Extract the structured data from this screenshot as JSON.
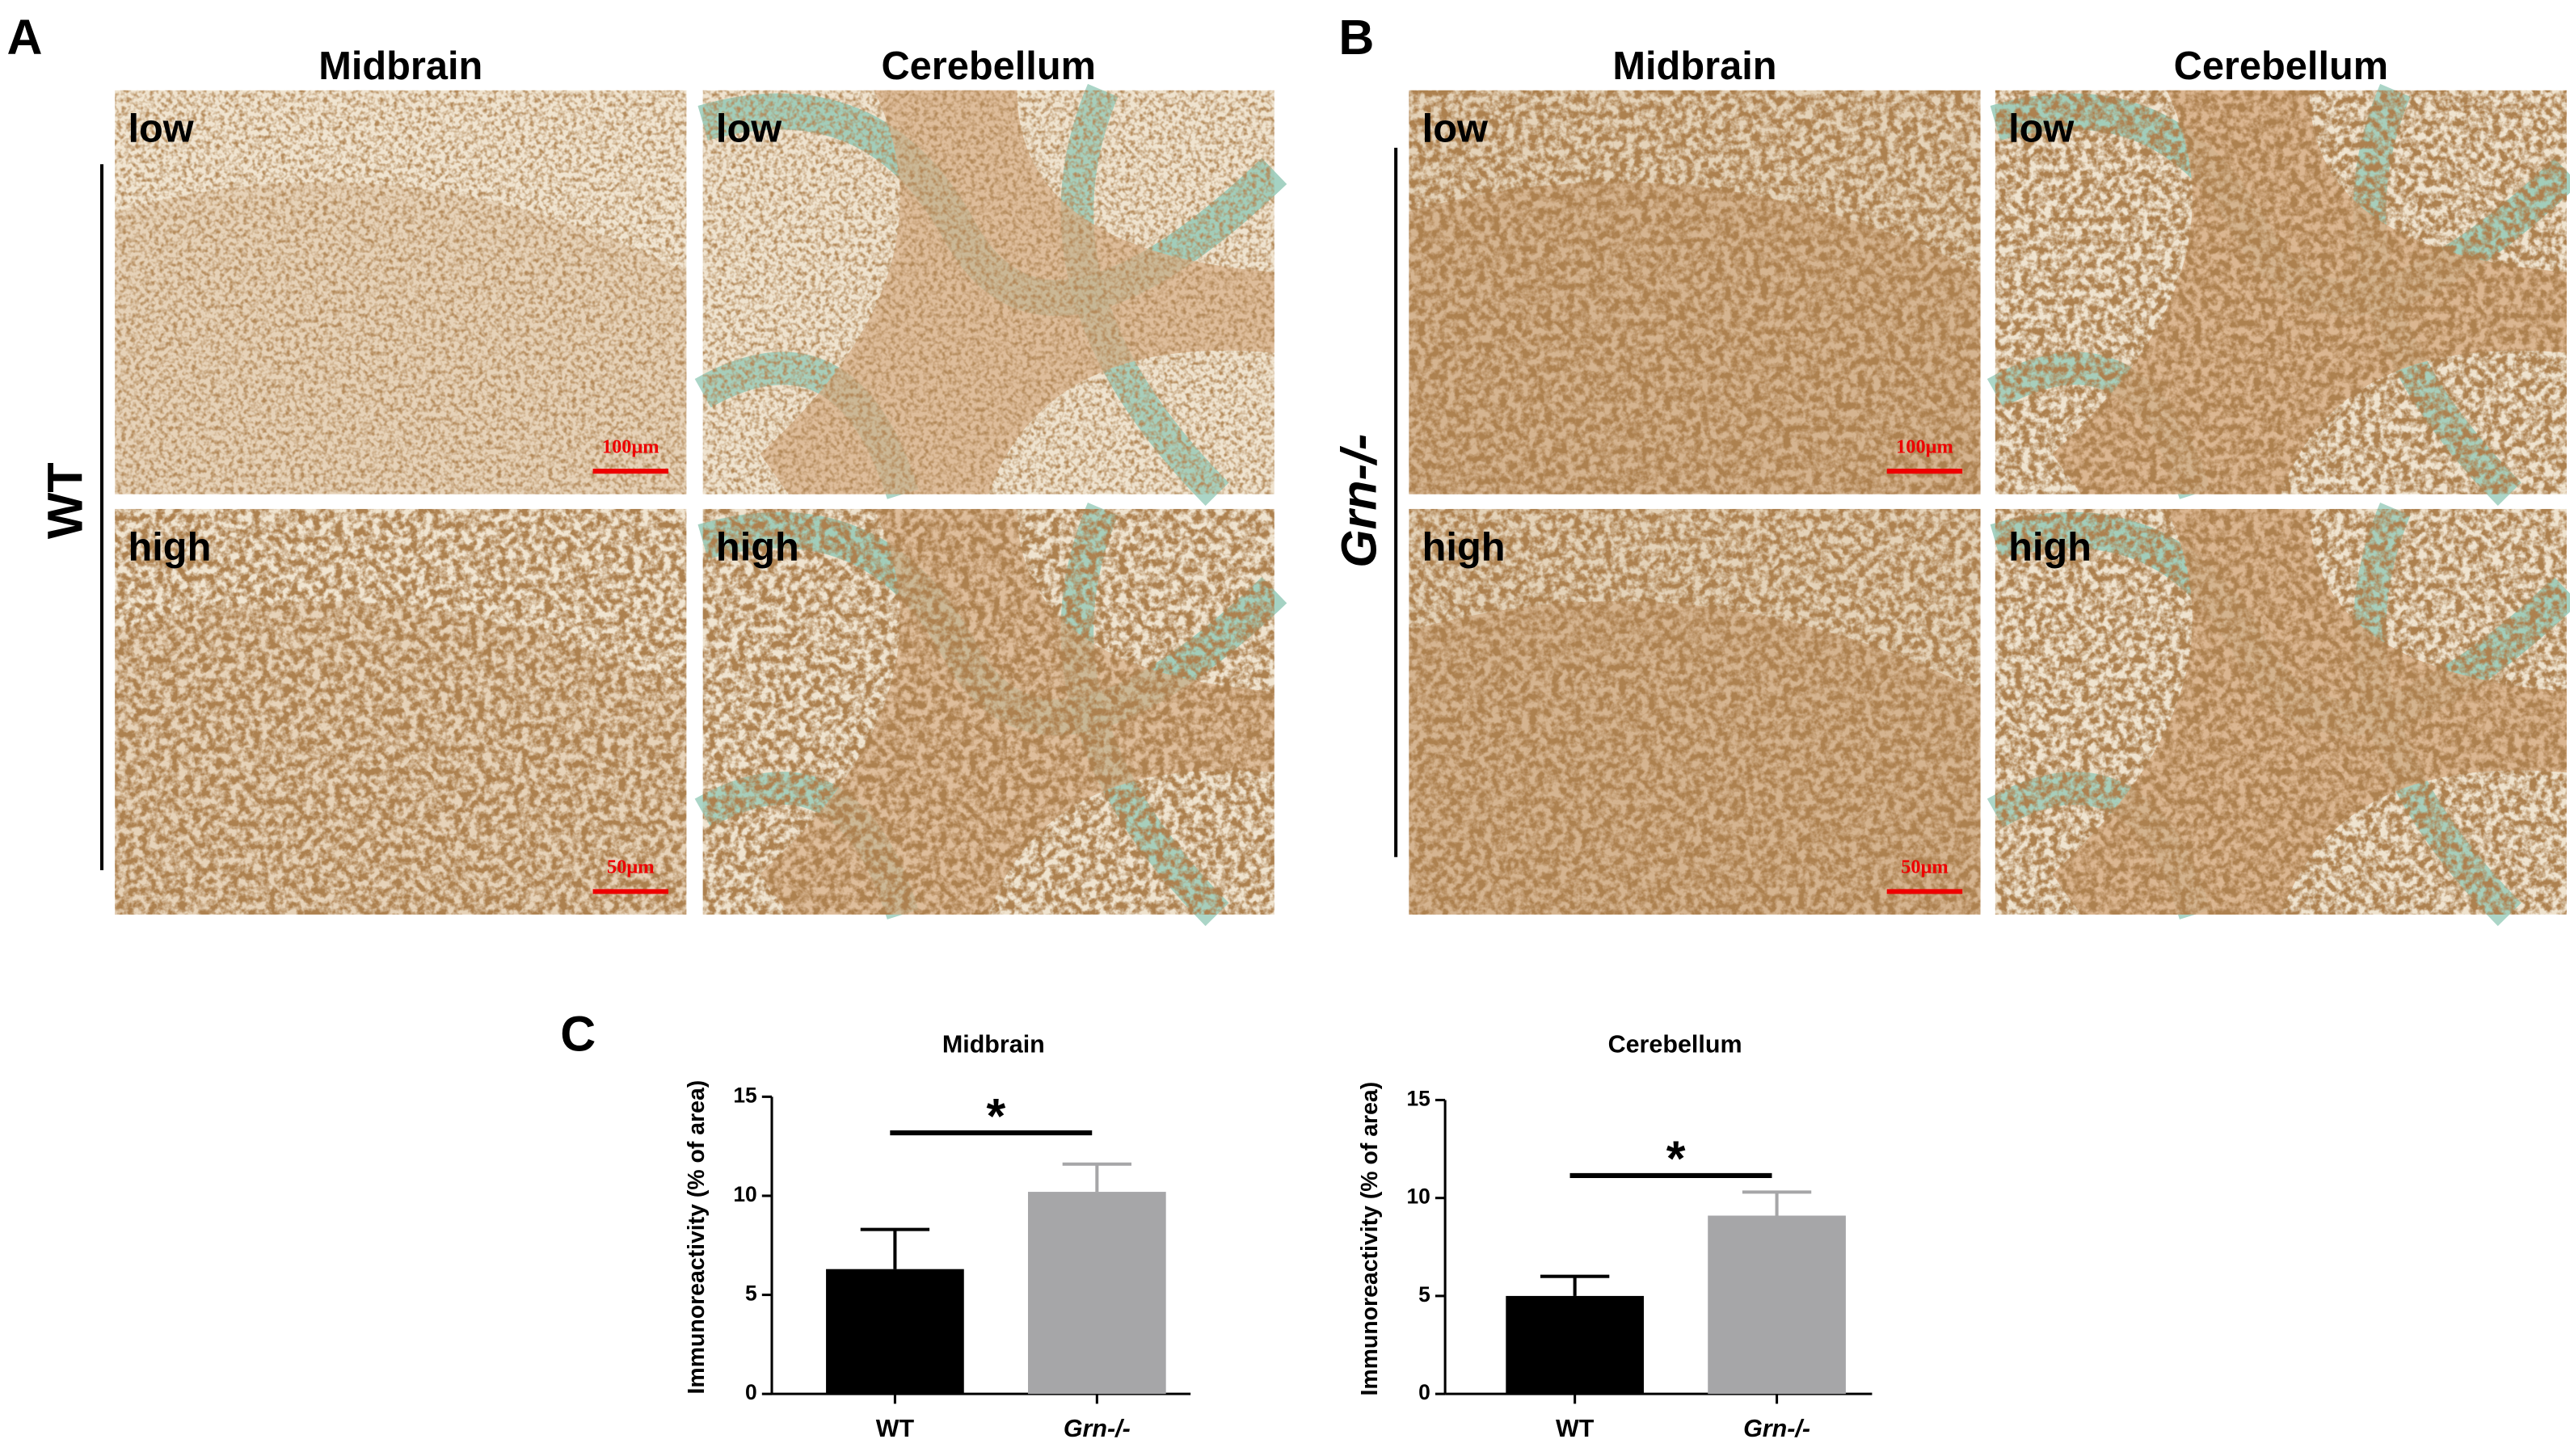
{
  "figure": {
    "A": {
      "letter": "A",
      "group": "WT",
      "columns": [
        "Midbrain",
        "Cerebellum"
      ],
      "rows": [
        "low",
        "high"
      ],
      "scale_bars": [
        "100μm",
        "50μm"
      ]
    },
    "B": {
      "letter": "B",
      "group": "Grn-/-",
      "columns": [
        "Midbrain",
        "Cerebellum"
      ],
      "rows": [
        "low",
        "high"
      ],
      "scale_bars": [
        "100μm",
        "50μm"
      ]
    },
    "C": {
      "letter": "C"
    }
  },
  "chart_data": [
    {
      "type": "bar",
      "title": "Midbrain",
      "y_label": "Immunoreactivity (% of area)",
      "categories": [
        "WT",
        "Grn-/-"
      ],
      "values": [
        6.3,
        10.2
      ],
      "errors": [
        2.0,
        1.4
      ],
      "colors": [
        "#000000",
        "#a6a6a8"
      ],
      "ylim": [
        0,
        15
      ],
      "yticks": [
        0,
        5,
        10,
        15
      ],
      "significance": "*"
    },
    {
      "type": "bar",
      "title": "Cerebellum",
      "y_label": "Immunoreactivity (% of area)",
      "categories": [
        "WT",
        "Grn-/-"
      ],
      "values": [
        5.0,
        9.1
      ],
      "errors": [
        1.0,
        1.2
      ],
      "colors": [
        "#000000",
        "#a6a6a8"
      ],
      "ylim": [
        0,
        15
      ],
      "yticks": [
        0,
        5,
        10,
        15
      ],
      "significance": "*"
    }
  ]
}
